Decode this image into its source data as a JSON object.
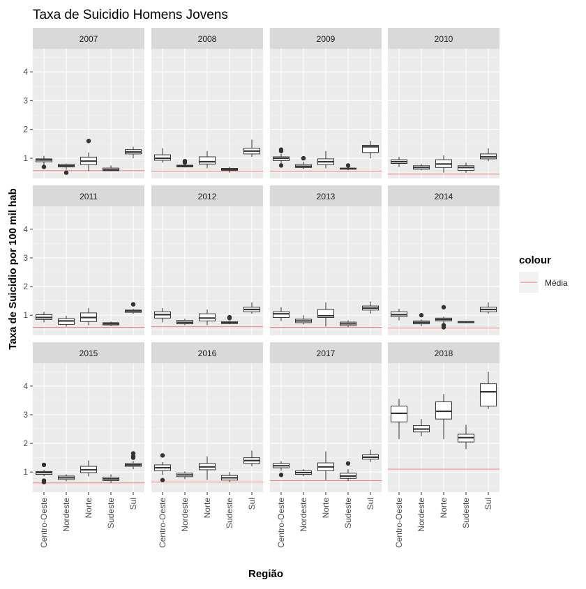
{
  "chart_data": {
    "type": "boxplot",
    "title": "Taxa de Suicidio Homens Jovens",
    "xlabel": "Região",
    "ylabel": "Taxa de Suicidio por 100 mil hab",
    "categories": [
      "Centro-Oeste",
      "Nordeste",
      "Norte",
      "Sudeste",
      "Sul"
    ],
    "y_ticks": [
      1,
      2,
      3,
      4
    ],
    "ylim": [
      0.3,
      4.8
    ],
    "legend": {
      "title": "colour",
      "entries": [
        {
          "label": "Média",
          "color": "#F8766D"
        }
      ]
    },
    "facets": [
      {
        "label": "2007",
        "mean": 0.57,
        "boxes": [
          {
            "q1": 0.88,
            "median": 0.94,
            "q3": 0.98,
            "wlow": 0.76,
            "whigh": 1.08,
            "outliers": [
              0.7
            ]
          },
          {
            "q1": 0.7,
            "median": 0.74,
            "q3": 0.79,
            "wlow": 0.6,
            "whigh": 0.82,
            "outliers": [
              0.5
            ]
          },
          {
            "q1": 0.78,
            "median": 0.9,
            "q3": 1.04,
            "wlow": 0.55,
            "whigh": 1.2,
            "outliers": [
              1.6
            ]
          },
          {
            "q1": 0.57,
            "median": 0.6,
            "q3": 0.66,
            "wlow": 0.55,
            "whigh": 0.75,
            "outliers": []
          },
          {
            "q1": 1.15,
            "median": 1.22,
            "q3": 1.3,
            "wlow": 1.0,
            "whigh": 1.4,
            "outliers": []
          }
        ]
      },
      {
        "label": "2008",
        "mean": 0.55,
        "boxes": [
          {
            "q1": 0.93,
            "median": 1.0,
            "q3": 1.12,
            "wlow": 0.85,
            "whigh": 1.35,
            "outliers": []
          },
          {
            "q1": 0.7,
            "median": 0.73,
            "q3": 0.76,
            "wlow": 0.68,
            "whigh": 0.8,
            "outliers": [
              0.85,
              0.9
            ]
          },
          {
            "q1": 0.8,
            "median": 0.88,
            "q3": 1.05,
            "wlow": 0.65,
            "whigh": 1.25,
            "outliers": []
          },
          {
            "q1": 0.58,
            "median": 0.61,
            "q3": 0.65,
            "wlow": 0.5,
            "whigh": 0.7,
            "outliers": []
          },
          {
            "q1": 1.15,
            "median": 1.25,
            "q3": 1.35,
            "wlow": 1.05,
            "whigh": 1.65,
            "outliers": []
          }
        ]
      },
      {
        "label": "2009",
        "mean": 0.55,
        "boxes": [
          {
            "q1": 0.92,
            "median": 1.0,
            "q3": 1.05,
            "wlow": 0.8,
            "whigh": 1.15,
            "outliers": [
              1.3,
              1.25,
              0.75
            ]
          },
          {
            "q1": 0.68,
            "median": 0.72,
            "q3": 0.78,
            "wlow": 0.62,
            "whigh": 0.88,
            "outliers": [
              1.0
            ]
          },
          {
            "q1": 0.78,
            "median": 0.88,
            "q3": 0.98,
            "wlow": 0.65,
            "whigh": 1.25,
            "outliers": []
          },
          {
            "q1": 0.62,
            "median": 0.64,
            "q3": 0.66,
            "wlow": 0.58,
            "whigh": 0.7,
            "outliers": [
              0.75
            ]
          },
          {
            "q1": 1.2,
            "median": 1.4,
            "q3": 1.45,
            "wlow": 1.0,
            "whigh": 1.6,
            "outliers": []
          }
        ]
      },
      {
        "label": "2010",
        "mean": 0.45,
        "boxes": [
          {
            "q1": 0.82,
            "median": 0.88,
            "q3": 0.95,
            "wlow": 0.7,
            "whigh": 1.05,
            "outliers": []
          },
          {
            "q1": 0.62,
            "median": 0.68,
            "q3": 0.74,
            "wlow": 0.58,
            "whigh": 0.8,
            "outliers": []
          },
          {
            "q1": 0.68,
            "median": 0.8,
            "q3": 0.95,
            "wlow": 0.5,
            "whigh": 1.1,
            "outliers": []
          },
          {
            "q1": 0.58,
            "median": 0.68,
            "q3": 0.74,
            "wlow": 0.5,
            "whigh": 0.85,
            "outliers": []
          },
          {
            "q1": 0.98,
            "median": 1.05,
            "q3": 1.15,
            "wlow": 0.9,
            "whigh": 1.35,
            "outliers": []
          }
        ]
      },
      {
        "label": "2011",
        "mean": 0.58,
        "boxes": [
          {
            "q1": 0.85,
            "median": 0.92,
            "q3": 1.02,
            "wlow": 0.75,
            "whigh": 1.12,
            "outliers": []
          },
          {
            "q1": 0.68,
            "median": 0.8,
            "q3": 0.88,
            "wlow": 0.6,
            "whigh": 0.98,
            "outliers": []
          },
          {
            "q1": 0.78,
            "median": 0.92,
            "q3": 1.08,
            "wlow": 0.65,
            "whigh": 1.25,
            "outliers": []
          },
          {
            "q1": 0.66,
            "median": 0.7,
            "q3": 0.74,
            "wlow": 0.62,
            "whigh": 0.78,
            "outliers": []
          },
          {
            "q1": 1.1,
            "median": 1.15,
            "q3": 1.18,
            "wlow": 1.05,
            "whigh": 1.22,
            "outliers": [
              1.38
            ]
          }
        ]
      },
      {
        "label": "2012",
        "mean": 0.6,
        "boxes": [
          {
            "q1": 0.9,
            "median": 1.02,
            "q3": 1.12,
            "wlow": 0.75,
            "whigh": 1.25,
            "outliers": []
          },
          {
            "q1": 0.7,
            "median": 0.75,
            "q3": 0.82,
            "wlow": 0.65,
            "whigh": 0.88,
            "outliers": []
          },
          {
            "q1": 0.8,
            "median": 0.9,
            "q3": 1.05,
            "wlow": 0.65,
            "whigh": 1.2,
            "outliers": []
          },
          {
            "q1": 0.71,
            "median": 0.74,
            "q3": 0.77,
            "wlow": 0.68,
            "whigh": 0.8,
            "outliers": [
              0.93,
              0.9
            ]
          },
          {
            "q1": 1.12,
            "median": 1.2,
            "q3": 1.28,
            "wlow": 1.05,
            "whigh": 1.45,
            "outliers": []
          }
        ]
      },
      {
        "label": "2013",
        "mean": 0.58,
        "boxes": [
          {
            "q1": 0.92,
            "median": 1.05,
            "q3": 1.12,
            "wlow": 0.8,
            "whigh": 1.28,
            "outliers": []
          },
          {
            "q1": 0.74,
            "median": 0.8,
            "q3": 0.86,
            "wlow": 0.68,
            "whigh": 1.0,
            "outliers": []
          },
          {
            "q1": 0.92,
            "median": 0.98,
            "q3": 1.2,
            "wlow": 0.6,
            "whigh": 1.45,
            "outliers": []
          },
          {
            "q1": 0.64,
            "median": 0.7,
            "q3": 0.76,
            "wlow": 0.58,
            "whigh": 0.82,
            "outliers": []
          },
          {
            "q1": 1.18,
            "median": 1.25,
            "q3": 1.32,
            "wlow": 1.05,
            "whigh": 1.48,
            "outliers": []
          }
        ]
      },
      {
        "label": "2014",
        "mean": 0.55,
        "boxes": [
          {
            "q1": 0.95,
            "median": 1.02,
            "q3": 1.12,
            "wlow": 0.82,
            "whigh": 1.22,
            "outliers": []
          },
          {
            "q1": 0.7,
            "median": 0.75,
            "q3": 0.8,
            "wlow": 0.62,
            "whigh": 0.85,
            "outliers": [
              1.0
            ]
          },
          {
            "q1": 0.8,
            "median": 0.85,
            "q3": 0.9,
            "wlow": 0.72,
            "whigh": 0.95,
            "outliers": [
              1.28,
              0.65,
              0.58
            ]
          },
          {
            "q1": 0.74,
            "median": 0.76,
            "q3": 0.78,
            "wlow": 0.72,
            "whigh": 0.8,
            "outliers": []
          },
          {
            "q1": 1.12,
            "median": 1.2,
            "q3": 1.28,
            "wlow": 1.05,
            "whigh": 1.45,
            "outliers": []
          }
        ]
      },
      {
        "label": "2015",
        "mean": 0.62,
        "boxes": [
          {
            "q1": 0.92,
            "median": 0.98,
            "q3": 1.02,
            "wlow": 0.85,
            "whigh": 1.08,
            "outliers": [
              1.25,
              0.7,
              0.65
            ]
          },
          {
            "q1": 0.74,
            "median": 0.8,
            "q3": 0.86,
            "wlow": 0.68,
            "whigh": 0.92,
            "outliers": []
          },
          {
            "q1": 0.98,
            "median": 1.08,
            "q3": 1.2,
            "wlow": 0.85,
            "whigh": 1.4,
            "outliers": []
          },
          {
            "q1": 0.7,
            "median": 0.76,
            "q3": 0.82,
            "wlow": 0.62,
            "whigh": 0.92,
            "outliers": []
          },
          {
            "q1": 1.2,
            "median": 1.25,
            "q3": 1.3,
            "wlow": 1.1,
            "whigh": 1.38,
            "outliers": [
              1.65,
              1.55,
              1.5
            ]
          }
        ]
      },
      {
        "label": "2016",
        "mean": 0.65,
        "boxes": [
          {
            "q1": 1.05,
            "median": 1.15,
            "q3": 1.25,
            "wlow": 0.9,
            "whigh": 1.35,
            "outliers": [
              1.58,
              0.72
            ]
          },
          {
            "q1": 0.84,
            "median": 0.9,
            "q3": 0.96,
            "wlow": 0.75,
            "whigh": 1.02,
            "outliers": []
          },
          {
            "q1": 1.08,
            "median": 1.18,
            "q3": 1.3,
            "wlow": 0.72,
            "whigh": 1.55,
            "outliers": []
          },
          {
            "q1": 0.72,
            "median": 0.8,
            "q3": 0.88,
            "wlow": 0.65,
            "whigh": 1.0,
            "outliers": []
          },
          {
            "q1": 1.3,
            "median": 1.4,
            "q3": 1.5,
            "wlow": 1.2,
            "whigh": 1.75,
            "outliers": []
          }
        ]
      },
      {
        "label": "2017",
        "mean": 0.7,
        "boxes": [
          {
            "q1": 1.15,
            "median": 1.22,
            "q3": 1.3,
            "wlow": 1.05,
            "whigh": 1.38,
            "outliers": [
              0.9
            ]
          },
          {
            "q1": 0.92,
            "median": 0.98,
            "q3": 1.04,
            "wlow": 0.85,
            "whigh": 1.1,
            "outliers": []
          },
          {
            "q1": 1.05,
            "median": 1.18,
            "q3": 1.32,
            "wlow": 0.72,
            "whigh": 1.72,
            "outliers": []
          },
          {
            "q1": 0.78,
            "median": 0.86,
            "q3": 0.96,
            "wlow": 0.68,
            "whigh": 1.1,
            "outliers": [
              1.3
            ]
          },
          {
            "q1": 1.45,
            "median": 1.52,
            "q3": 1.6,
            "wlow": 1.35,
            "whigh": 1.78,
            "outliers": []
          }
        ]
      },
      {
        "label": "2018",
        "mean": 1.1,
        "boxes": [
          {
            "q1": 2.75,
            "median": 3.05,
            "q3": 3.3,
            "wlow": 2.15,
            "whigh": 3.55,
            "outliers": []
          },
          {
            "q1": 2.4,
            "median": 2.5,
            "q3": 2.62,
            "wlow": 2.25,
            "whigh": 2.85,
            "outliers": []
          },
          {
            "q1": 2.85,
            "median": 3.12,
            "q3": 3.45,
            "wlow": 2.15,
            "whigh": 3.72,
            "outliers": []
          },
          {
            "q1": 2.05,
            "median": 2.2,
            "q3": 2.32,
            "wlow": 1.8,
            "whigh": 2.65,
            "outliers": []
          },
          {
            "q1": 3.3,
            "median": 3.8,
            "q3": 4.08,
            "wlow": 3.2,
            "whigh": 4.5,
            "outliers": []
          }
        ]
      }
    ]
  }
}
